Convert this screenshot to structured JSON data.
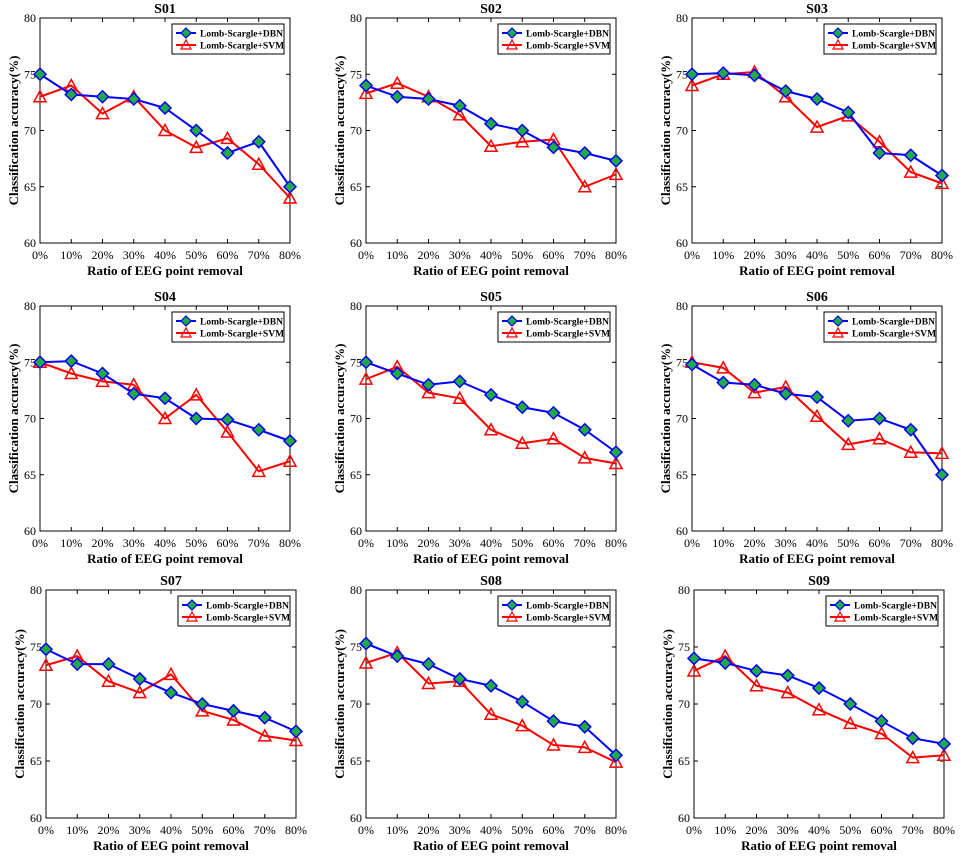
{
  "chart_data": [
    {
      "type": "line",
      "title": "S01",
      "xlabel": "Ratio of EEG point removal",
      "ylabel": "Classification accuracy(%)",
      "categories": [
        "0%",
        "10%",
        "20%",
        "30%",
        "40%",
        "50%",
        "60%",
        "70%",
        "80%"
      ],
      "ylim": [
        60,
        80
      ],
      "yticks": [
        "60",
        "65",
        "70",
        "75",
        "80"
      ],
      "legend_position": "top-right",
      "series": [
        {
          "name": "Lomb-Scargle+DBN",
          "color": "#0000ff",
          "marker": "diamond",
          "marker_fill": "#22aa44",
          "values": [
            75.0,
            73.2,
            73.0,
            72.8,
            72.0,
            70.0,
            68.0,
            69.0,
            65.0
          ]
        },
        {
          "name": "Lomb-Scargle+SVM",
          "color": "#ff0000",
          "marker": "triangle",
          "marker_fill": "none",
          "values": [
            73.0,
            74.0,
            71.5,
            73.0,
            70.0,
            68.5,
            69.3,
            67.0,
            64.0
          ]
        }
      ]
    },
    {
      "type": "line",
      "title": "S02",
      "xlabel": "Ratio of EEG point removal",
      "ylabel": "Classification accuracy(%)",
      "categories": [
        "0%",
        "10%",
        "20%",
        "30%",
        "40%",
        "50%",
        "60%",
        "70%",
        "80%"
      ],
      "ylim": [
        60,
        80
      ],
      "yticks": [
        "60",
        "65",
        "70",
        "75",
        "80"
      ],
      "legend_position": "top-right",
      "series": [
        {
          "name": "Lomb-Scargle+DBN",
          "color": "#0000ff",
          "marker": "diamond",
          "marker_fill": "#22aa44",
          "values": [
            74.0,
            73.0,
            72.8,
            72.2,
            70.6,
            70.0,
            68.5,
            68.0,
            67.3
          ]
        },
        {
          "name": "Lomb-Scargle+SVM",
          "color": "#ff0000",
          "marker": "triangle",
          "marker_fill": "none",
          "values": [
            73.3,
            74.2,
            73.0,
            71.4,
            68.6,
            69.0,
            69.2,
            65.0,
            66.1
          ]
        }
      ]
    },
    {
      "type": "line",
      "title": "S03",
      "xlabel": "Ratio of EEG point removal",
      "ylabel": "Classification accuracy(%)",
      "categories": [
        "0%",
        "10%",
        "20%",
        "30%",
        "40%",
        "50%",
        "60%",
        "70%",
        "80%"
      ],
      "ylim": [
        60,
        80
      ],
      "yticks": [
        "60",
        "65",
        "70",
        "75",
        "80"
      ],
      "legend_position": "top-right",
      "series": [
        {
          "name": "Lomb-Scargle+DBN",
          "color": "#0000ff",
          "marker": "diamond",
          "marker_fill": "#22aa44",
          "values": [
            75.0,
            75.1,
            74.9,
            73.5,
            72.8,
            71.6,
            68.0,
            67.8,
            66.0
          ]
        },
        {
          "name": "Lomb-Scargle+SVM",
          "color": "#ff0000",
          "marker": "triangle",
          "marker_fill": "none",
          "values": [
            74.0,
            75.0,
            75.2,
            73.0,
            70.3,
            71.3,
            69.0,
            66.3,
            65.3
          ]
        }
      ]
    },
    {
      "type": "line",
      "title": "S04",
      "xlabel": "Ratio of EEG point removal",
      "ylabel": "Classification accuracy(%)",
      "categories": [
        "0%",
        "10%",
        "20%",
        "30%",
        "40%",
        "50%",
        "60%",
        "70%",
        "80%"
      ],
      "ylim": [
        60,
        80
      ],
      "yticks": [
        "60",
        "65",
        "70",
        "75",
        "80"
      ],
      "legend_position": "top-right",
      "series": [
        {
          "name": "Lomb-Scargle+DBN",
          "color": "#0000ff",
          "marker": "diamond",
          "marker_fill": "#22aa44",
          "values": [
            75.0,
            75.1,
            74.0,
            72.2,
            71.8,
            70.0,
            69.9,
            69.0,
            68.0
          ]
        },
        {
          "name": "Lomb-Scargle+SVM",
          "color": "#ff0000",
          "marker": "triangle",
          "marker_fill": "none",
          "values": [
            75.0,
            74.0,
            73.3,
            73.0,
            70.0,
            72.1,
            68.8,
            65.3,
            66.2
          ]
        }
      ]
    },
    {
      "type": "line",
      "title": "S05",
      "xlabel": "Ratio of EEG point removal",
      "ylabel": "Classification accuracy(%)",
      "categories": [
        "0%",
        "10%",
        "20%",
        "30%",
        "40%",
        "50%",
        "60%",
        "70%",
        "80%"
      ],
      "ylim": [
        60,
        80
      ],
      "yticks": [
        "60",
        "65",
        "70",
        "75",
        "80"
      ],
      "legend_position": "top-right",
      "series": [
        {
          "name": "Lomb-Scargle+DBN",
          "color": "#0000ff",
          "marker": "diamond",
          "marker_fill": "#22aa44",
          "values": [
            75.0,
            74.0,
            73.0,
            73.3,
            72.1,
            71.0,
            70.5,
            69.0,
            67.0
          ]
        },
        {
          "name": "Lomb-Scargle+SVM",
          "color": "#ff0000",
          "marker": "triangle",
          "marker_fill": "none",
          "values": [
            73.5,
            74.6,
            72.3,
            71.8,
            69.0,
            67.8,
            68.2,
            66.5,
            66.0
          ]
        }
      ]
    },
    {
      "type": "line",
      "title": "S06",
      "xlabel": "Ratio of EEG point removal",
      "ylabel": "Classification accuracy(%)",
      "categories": [
        "0%",
        "10%",
        "20%",
        "30%",
        "40%",
        "50%",
        "60%",
        "70%",
        "80%"
      ],
      "ylim": [
        60,
        80
      ],
      "yticks": [
        "60",
        "65",
        "70",
        "75",
        "80"
      ],
      "legend_position": "top-right",
      "series": [
        {
          "name": "Lomb-Scargle+DBN",
          "color": "#0000ff",
          "marker": "diamond",
          "marker_fill": "#22aa44",
          "values": [
            74.8,
            73.2,
            73.0,
            72.2,
            71.9,
            69.8,
            70.0,
            69.0,
            65.0
          ]
        },
        {
          "name": "Lomb-Scargle+SVM",
          "color": "#ff0000",
          "marker": "triangle",
          "marker_fill": "none",
          "values": [
            75.0,
            74.5,
            72.3,
            72.8,
            70.2,
            67.7,
            68.2,
            67.0,
            66.9
          ]
        }
      ]
    },
    {
      "type": "line",
      "title": "S07",
      "xlabel": "Ratio of EEG point removal",
      "ylabel": "Classification accuracy(%)",
      "categories": [
        "0%",
        "10%",
        "20%",
        "30%",
        "40%",
        "50%",
        "60%",
        "70%",
        "80%"
      ],
      "ylim": [
        60,
        80
      ],
      "yticks": [
        "60",
        "65",
        "70",
        "75",
        "80"
      ],
      "legend_position": "top-right",
      "series": [
        {
          "name": "Lomb-Scargle+DBN",
          "color": "#0000ff",
          "marker": "diamond",
          "marker_fill": "#22aa44",
          "values": [
            74.8,
            73.5,
            73.5,
            72.2,
            71.0,
            70.0,
            69.4,
            68.8,
            67.6
          ]
        },
        {
          "name": "Lomb-Scargle+SVM",
          "color": "#ff0000",
          "marker": "triangle",
          "marker_fill": "none",
          "values": [
            73.4,
            74.2,
            72.0,
            71.0,
            72.6,
            69.4,
            68.6,
            67.2,
            66.8
          ]
        }
      ]
    },
    {
      "type": "line",
      "title": "S08",
      "xlabel": "Ratio of EEG point removal",
      "ylabel": "Classification accuracy(%)",
      "categories": [
        "0%",
        "10%",
        "20%",
        "30%",
        "40%",
        "50%",
        "60%",
        "70%",
        "80%"
      ],
      "ylim": [
        60,
        80
      ],
      "yticks": [
        "60",
        "65",
        "70",
        "75",
        "80"
      ],
      "legend_position": "top-right",
      "series": [
        {
          "name": "Lomb-Scargle+DBN",
          "color": "#0000ff",
          "marker": "diamond",
          "marker_fill": "#22aa44",
          "values": [
            75.3,
            74.2,
            73.5,
            72.2,
            71.6,
            70.2,
            68.5,
            68.0,
            65.5
          ]
        },
        {
          "name": "Lomb-Scargle+SVM",
          "color": "#ff0000",
          "marker": "triangle",
          "marker_fill": "none",
          "values": [
            73.6,
            74.5,
            71.8,
            72.0,
            69.1,
            68.1,
            66.4,
            66.2,
            64.9
          ]
        }
      ]
    },
    {
      "type": "line",
      "title": "S09",
      "xlabel": "Ratio of EEG point removal",
      "ylabel": "Classification accuracy(%)",
      "categories": [
        "0%",
        "10%",
        "20%",
        "30%",
        "40%",
        "50%",
        "60%",
        "70%",
        "80%"
      ],
      "ylim": [
        60,
        80
      ],
      "yticks": [
        "60",
        "65",
        "70",
        "75",
        "80"
      ],
      "legend_position": "top-right",
      "series": [
        {
          "name": "Lomb-Scargle+DBN",
          "color": "#0000ff",
          "marker": "diamond",
          "marker_fill": "#22aa44",
          "values": [
            74.0,
            73.6,
            72.9,
            72.5,
            71.4,
            70.0,
            68.5,
            67.0,
            66.5
          ]
        },
        {
          "name": "Lomb-Scargle+SVM",
          "color": "#ff0000",
          "marker": "triangle",
          "marker_fill": "none",
          "values": [
            72.9,
            74.2,
            71.6,
            71.0,
            69.5,
            68.3,
            67.4,
            65.3,
            65.5
          ]
        }
      ]
    }
  ]
}
